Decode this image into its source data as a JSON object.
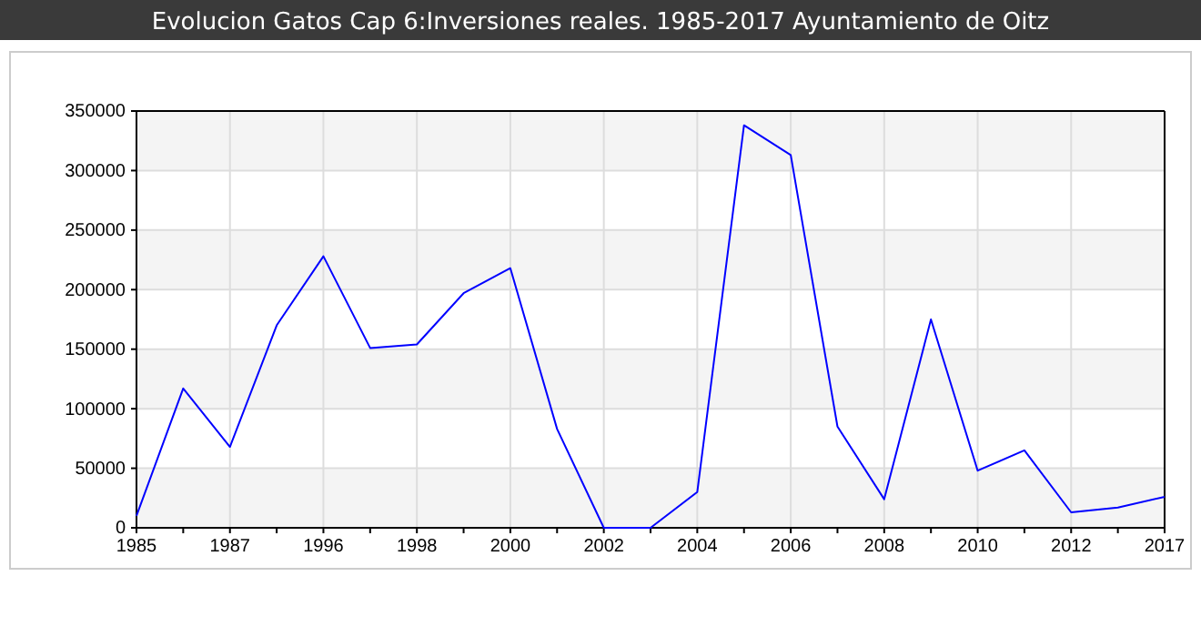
{
  "chart_data": {
    "type": "line",
    "title": "Evolucion Gatos Cap 6:Inversiones reales. 1985-2017 Ayuntamiento de Oitz",
    "categories": [
      "1985",
      null,
      "1987",
      null,
      "1996",
      null,
      "1998",
      null,
      "2000",
      null,
      "2002",
      null,
      "2004",
      null,
      "2006",
      null,
      "2008",
      null,
      "2010",
      null,
      "2012",
      null,
      "2017"
    ],
    "series": [
      {
        "color": "#0000ff",
        "values": [
          10000,
          117000,
          68000,
          170000,
          228000,
          151000,
          154000,
          197000,
          218000,
          83000,
          0,
          0,
          30000,
          338000,
          313000,
          85000,
          24000,
          175000,
          48000,
          65000,
          13000,
          17000,
          26000
        ]
      }
    ],
    "ylim": [
      0,
      350000
    ],
    "yticks": [
      0,
      50000,
      100000,
      150000,
      200000,
      250000,
      300000,
      350000
    ],
    "grid": true,
    "marker": "none",
    "line_style": "solid"
  }
}
